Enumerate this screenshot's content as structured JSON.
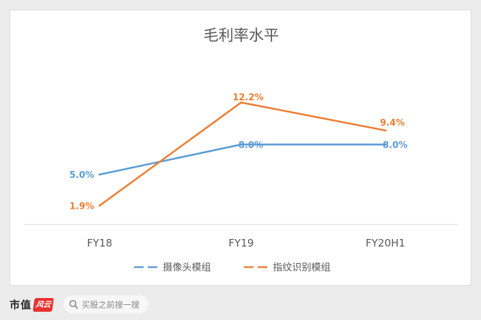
{
  "chart_data": {
    "type": "line",
    "title": "毛利率水平",
    "categories": [
      "FY18",
      "FY19",
      "FY20H1"
    ],
    "series": [
      {
        "name": "摄像头模组",
        "values": [
          5.0,
          8.0,
          8.0
        ],
        "labels": [
          "5.0%",
          "8.0%",
          "8.0%"
        ],
        "color": "#5b9bd5"
      },
      {
        "name": "指纹识别模组",
        "values": [
          1.9,
          12.2,
          9.4
        ],
        "labels": [
          "1.9%",
          "12.2%",
          "9.4%"
        ],
        "color": "#ed7d31"
      }
    ],
    "xlabel": "",
    "ylabel": "",
    "ylim": [
      0,
      14
    ],
    "grid": false,
    "legend_position": "bottom"
  },
  "footer": {
    "brand_text": "市值",
    "brand_logo_text": "风云",
    "search_placeholder": "买股之前搜一搜"
  }
}
